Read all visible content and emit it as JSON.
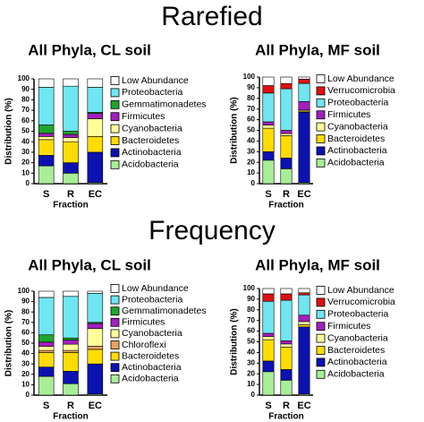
{
  "headings": [
    "Rarefied",
    "Frequency"
  ],
  "chart_data": [
    {
      "type": "bar",
      "stacked": true,
      "title": "All Phyla, CL soil",
      "xlabel": "Fraction",
      "ylabel": "Distribution (%)",
      "categories": [
        "S",
        "R",
        "EC"
      ],
      "ylim": [
        0,
        100
      ],
      "yticks": [
        0,
        10,
        20,
        30,
        40,
        50,
        60,
        70,
        80,
        90,
        100
      ],
      "series": [
        {
          "name": "Low Abundance",
          "color": "#ffffff",
          "values": [
            8,
            7,
            8
          ]
        },
        {
          "name": "Proteobacteria",
          "color": "#6fe6f2",
          "values": [
            36,
            43,
            24
          ]
        },
        {
          "name": "Gemmatimonadetes",
          "color": "#1fa52c",
          "values": [
            8,
            3,
            1
          ]
        },
        {
          "name": "Firmicutes",
          "color": "#a21fbf",
          "values": [
            3,
            3,
            5
          ]
        },
        {
          "name": "Cyanobacteria",
          "color": "#ffff9a",
          "values": [
            3,
            4,
            17
          ]
        },
        {
          "name": "Bacteroidetes",
          "color": "#ffdc00",
          "values": [
            15,
            20,
            15
          ]
        },
        {
          "name": "Actinobacteria",
          "color": "#0b12b0",
          "values": [
            10,
            10,
            29
          ]
        },
        {
          "name": "Acidobacteria",
          "color": "#a8ee98",
          "values": [
            17,
            10,
            1
          ]
        }
      ]
    },
    {
      "type": "bar",
      "stacked": true,
      "title": "All Phyla, MF soil",
      "xlabel": "Fraction",
      "ylabel": "Distribution (%)",
      "categories": [
        "S",
        "R",
        "EC"
      ],
      "ylim": [
        0,
        100
      ],
      "yticks": [
        0,
        10,
        20,
        30,
        40,
        50,
        60,
        70,
        80,
        90,
        100
      ],
      "series": [
        {
          "name": "Low Abundance",
          "color": "#ffffff",
          "values": [
            8,
            6,
            2
          ]
        },
        {
          "name": "Verrucomicrobia",
          "color": "#dd1111",
          "values": [
            7,
            5,
            4
          ]
        },
        {
          "name": "Proteobacteria",
          "color": "#6fe6f2",
          "values": [
            27,
            39,
            17
          ]
        },
        {
          "name": "Firmicutes",
          "color": "#a21fbf",
          "values": [
            3,
            3,
            8
          ]
        },
        {
          "name": "Cyanobacteria",
          "color": "#ffff9a",
          "values": [
            3,
            2,
            1
          ]
        },
        {
          "name": "Bacteroidetes",
          "color": "#ffdc00",
          "values": [
            22,
            21,
            1
          ]
        },
        {
          "name": "Actinobacteria",
          "color": "#0b12b0",
          "values": [
            8,
            10,
            66
          ]
        },
        {
          "name": "Acidobacteria",
          "color": "#a8ee98",
          "values": [
            22,
            14,
            1
          ]
        }
      ]
    },
    {
      "type": "bar",
      "stacked": true,
      "title": "All Phyla, CL soil",
      "xlabel": "Fraction",
      "ylabel": "Distribution (%)",
      "categories": [
        "S",
        "R",
        "EC"
      ],
      "ylim": [
        0,
        100
      ],
      "yticks": [
        0,
        10,
        20,
        30,
        40,
        50,
        60,
        70,
        80,
        90,
        100
      ],
      "series": [
        {
          "name": "Low Abundance",
          "color": "#ffffff",
          "values": [
            6,
            5,
            2
          ]
        },
        {
          "name": "Proteobacteria",
          "color": "#6fe6f2",
          "values": [
            36,
            40,
            28
          ]
        },
        {
          "name": "Gemmatimonadetes",
          "color": "#1fa52c",
          "values": [
            7,
            2,
            1
          ]
        },
        {
          "name": "Firmicutes",
          "color": "#a21fbf",
          "values": [
            4,
            4,
            5
          ]
        },
        {
          "name": "Cyanobacteria",
          "color": "#ffff9a",
          "values": [
            4,
            6,
            17
          ]
        },
        {
          "name": "Chloroflexi",
          "color": "#e8a35c",
          "values": [
            2,
            2,
            3
          ]
        },
        {
          "name": "Bacteroidetes",
          "color": "#ffdc00",
          "values": [
            14,
            18,
            14
          ]
        },
        {
          "name": "Actinobacteria",
          "color": "#0b12b0",
          "values": [
            9,
            12,
            29
          ]
        },
        {
          "name": "Acidobacteria",
          "color": "#a8ee98",
          "values": [
            18,
            11,
            1
          ]
        }
      ]
    },
    {
      "type": "bar",
      "stacked": true,
      "title": "All Phyla, MF soil",
      "xlabel": "Fraction",
      "ylabel": "Distribution (%)",
      "categories": [
        "S",
        "R",
        "EC"
      ],
      "ylim": [
        0,
        100
      ],
      "yticks": [
        0,
        10,
        20,
        30,
        40,
        50,
        60,
        70,
        80,
        90,
        100
      ],
      "series": [
        {
          "name": "Low Abundance",
          "color": "#ffffff",
          "values": [
            5,
            5,
            4
          ]
        },
        {
          "name": "Verrucomicrobia",
          "color": "#dd1111",
          "values": [
            7,
            6,
            2
          ]
        },
        {
          "name": "Proteobacteria",
          "color": "#6fe6f2",
          "values": [
            30,
            38,
            19
          ]
        },
        {
          "name": "Firmicutes",
          "color": "#a21fbf",
          "values": [
            3,
            3,
            6
          ]
        },
        {
          "name": "Cyanobacteria",
          "color": "#ffff9a",
          "values": [
            3,
            3,
            3
          ]
        },
        {
          "name": "Bacteroidetes",
          "color": "#ffdc00",
          "values": [
            20,
            21,
            2
          ]
        },
        {
          "name": "Actinobacteria",
          "color": "#0b12b0",
          "values": [
            10,
            10,
            63
          ]
        },
        {
          "name": "Acidobacteria",
          "color": "#a8ee98",
          "values": [
            22,
            14,
            1
          ]
        }
      ]
    }
  ]
}
